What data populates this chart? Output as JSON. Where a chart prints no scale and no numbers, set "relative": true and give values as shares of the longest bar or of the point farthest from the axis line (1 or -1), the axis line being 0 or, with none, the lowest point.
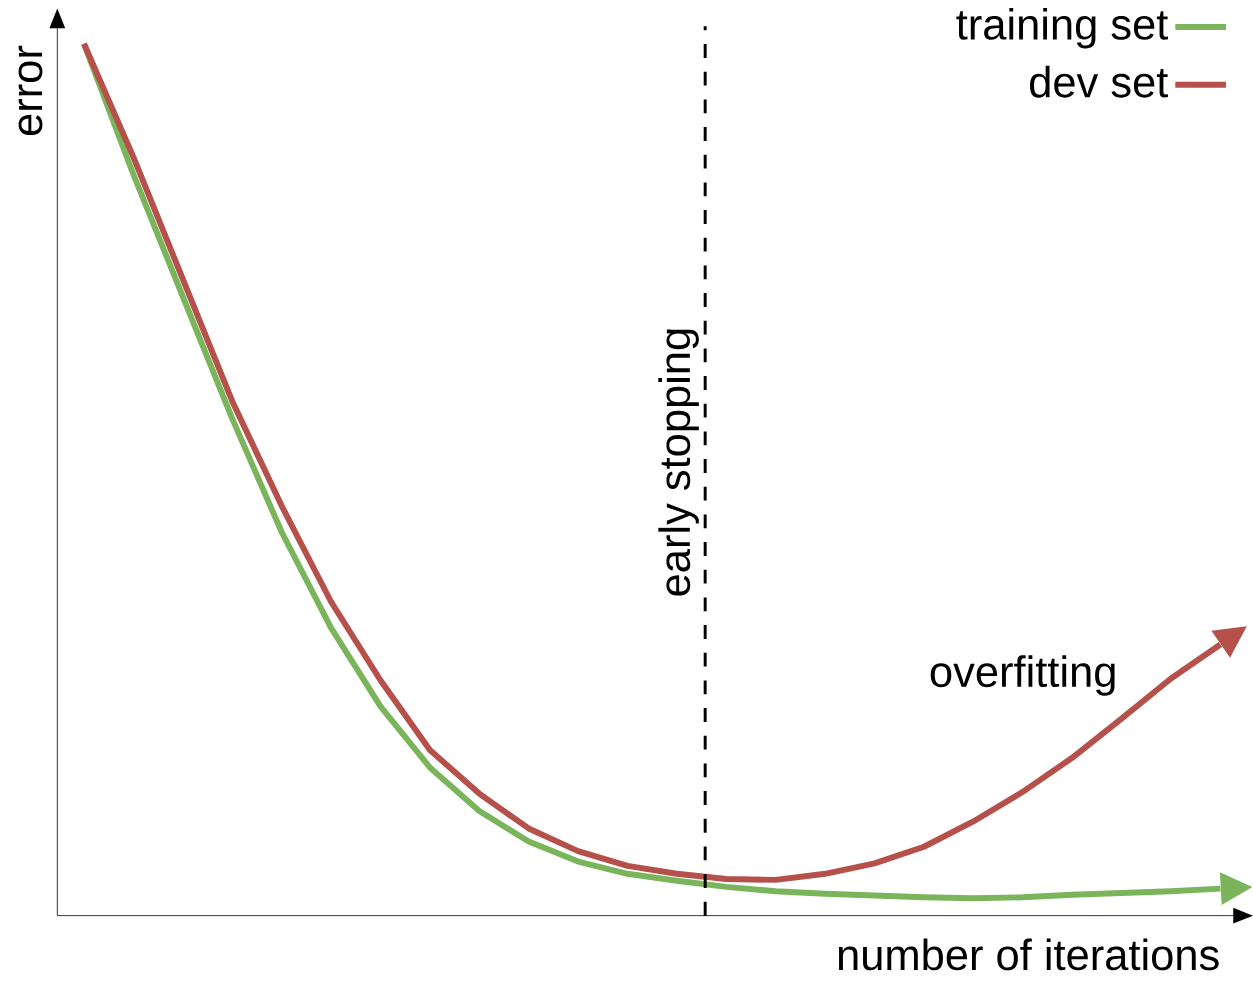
{
  "chart_data": {
    "type": "line",
    "relative": true,
    "xlabel": "number of iterations",
    "ylabel": "error",
    "categories": [
      null,
      null,
      null,
      null,
      null,
      null,
      null,
      null,
      null,
      null,
      null,
      null,
      null,
      null,
      null,
      null,
      null,
      null,
      null,
      null,
      null,
      null,
      null,
      null
    ],
    "series": [
      {
        "name": "training set",
        "color": "#7ab55c",
        "values": [
          1.0,
          0.85,
          0.71,
          0.57,
          0.44,
          0.33,
          0.24,
          0.17,
          0.12,
          0.085,
          0.062,
          0.048,
          0.04,
          0.033,
          0.028,
          0.025,
          0.023,
          0.021,
          0.02,
          0.021,
          0.024,
          0.026,
          0.028,
          0.031
        ]
      },
      {
        "name": "dev set",
        "color": "#b5504a",
        "values": [
          1.0,
          0.87,
          0.73,
          0.59,
          0.47,
          0.36,
          0.27,
          0.19,
          0.14,
          0.1,
          0.074,
          0.057,
          0.048,
          0.042,
          0.041,
          0.048,
          0.06,
          0.079,
          0.108,
          0.142,
          0.181,
          0.226,
          0.272,
          0.311
        ]
      }
    ],
    "annotations": [
      "early stopping",
      "overfitting"
    ],
    "legend": "top right",
    "marker": "none",
    "line_style": "solid"
  }
}
